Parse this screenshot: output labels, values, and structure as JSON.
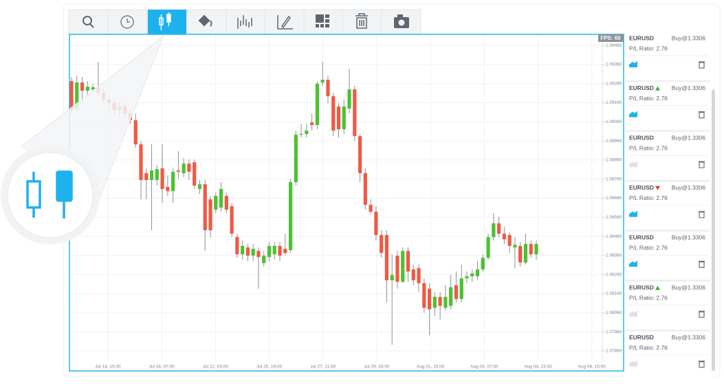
{
  "chart": {
    "fps_label": "FPS: 60",
    "up_color": "#4cc230",
    "down_color": "#ef5a44",
    "ylim": [
      1.07802,
      1.09518
    ],
    "yticks": [
      {
        "value": 1.0946,
        "label": "1.09460"
      },
      {
        "value": 1.0936,
        "label": "1.09360"
      },
      {
        "value": 1.0926,
        "label": "1.09260"
      },
      {
        "value": 1.0916,
        "label": "1.09160"
      },
      {
        "value": 1.0906,
        "label": "1.09060"
      },
      {
        "value": 1.0896,
        "label": "1.08960"
      },
      {
        "value": 1.0886,
        "label": "1.08860"
      },
      {
        "value": 1.0876,
        "label": "1.08760"
      },
      {
        "value": 1.0866,
        "label": "1.08660"
      },
      {
        "value": 1.0856,
        "label": "1.08560"
      },
      {
        "value": 1.0846,
        "label": "1.08460"
      },
      {
        "value": 1.0836,
        "label": "1.08360"
      },
      {
        "value": 1.0826,
        "label": "1.08260"
      },
      {
        "value": 1.0816,
        "label": "1.08160"
      },
      {
        "value": 1.0806,
        "label": "1.08060"
      },
      {
        "value": 1.0796,
        "label": "1.07960"
      },
      {
        "value": 1.0786,
        "label": "1.07860"
      }
    ],
    "xlabels": [
      "Jul 14, 15:00",
      "Jul 18, 07:00",
      "Jul 22, 03:00",
      "Jul 25, 19:00",
      "Jul 27, 11:00",
      "Jul 29, 03:00",
      "Aug 01, 15:00",
      "Aug 03, 07:00",
      "Aug 04, 23:00",
      "Aug 08, 15:00"
    ],
    "candles": [
      [
        1.09273,
        1.09295,
        1.09104,
        1.09122
      ],
      [
        1.09129,
        1.09302,
        1.09115,
        1.09266
      ],
      [
        1.09266,
        1.09295,
        1.09158,
        1.09223
      ],
      [
        1.09223,
        1.09273,
        1.09194,
        1.09244
      ],
      [
        1.0923,
        1.09259,
        1.09212,
        1.09241
      ],
      [
        1.09241,
        1.09374,
        1.09194,
        1.09212
      ],
      [
        1.09212,
        1.0923,
        1.09158,
        1.09176
      ],
      [
        1.09176,
        1.09194,
        1.09129,
        1.09158
      ],
      [
        1.09158,
        1.09176,
        1.09104,
        1.09122
      ],
      [
        1.09122,
        1.09158,
        1.09093,
        1.0914
      ],
      [
        1.0914,
        1.09158,
        1.09086,
        1.09104
      ],
      [
        1.09104,
        1.09122,
        1.0905,
        1.09068
      ],
      [
        1.09068,
        1.09104,
        1.08924,
        1.08942
      ],
      [
        1.08942,
        1.0896,
        1.08654,
        1.08755
      ],
      [
        1.08791,
        1.08816,
        1.08654,
        1.08755
      ],
      [
        1.08755,
        1.08942,
        1.08492,
        1.08805
      ],
      [
        1.08755,
        1.08834,
        1.08726,
        1.08812
      ],
      [
        1.08816,
        1.08942,
        1.08636,
        1.08708
      ],
      [
        1.08719,
        1.0878,
        1.08672,
        1.08697
      ],
      [
        1.08697,
        1.08816,
        1.08636,
        1.08798
      ],
      [
        1.08805,
        1.08906,
        1.08762,
        1.08798
      ],
      [
        1.08791,
        1.0887,
        1.0877,
        1.08841
      ],
      [
        1.08841,
        1.08863,
        1.08755,
        1.08798
      ],
      [
        1.08848,
        1.08863,
        1.08708,
        1.08726
      ],
      [
        1.08708,
        1.08755,
        1.08683,
        1.08733
      ],
      [
        1.08733,
        1.08755,
        1.08384,
        1.08492
      ],
      [
        1.08654,
        1.08672,
        1.08456,
        1.08492
      ],
      [
        1.086,
        1.0869,
        1.08582,
        1.08672
      ],
      [
        1.08611,
        1.08744,
        1.0859,
        1.08708
      ],
      [
        1.08672,
        1.0869,
        1.08582,
        1.086
      ],
      [
        1.08618,
        1.08636,
        1.08456,
        1.08474
      ],
      [
        1.08456,
        1.08474,
        1.08348,
        1.08366
      ],
      [
        1.08366,
        1.08438,
        1.08338,
        1.0841
      ],
      [
        1.08402,
        1.0842,
        1.0833,
        1.08359
      ],
      [
        1.08359,
        1.0842,
        1.0833,
        1.08395
      ],
      [
        1.08384,
        1.08402,
        1.08186,
        1.08352
      ],
      [
        1.0832,
        1.08384,
        1.08302,
        1.08359
      ],
      [
        1.08352,
        1.08431,
        1.0833,
        1.0841
      ],
      [
        1.08366,
        1.08431,
        1.08338,
        1.0841
      ],
      [
        1.0841,
        1.08431,
        1.0833,
        1.08359
      ],
      [
        1.08395,
        1.08474,
        1.08359,
        1.08373
      ],
      [
        1.08388,
        1.08762,
        1.08373,
        1.08744
      ],
      [
        1.08744,
        1.09014,
        1.08726,
        1.08992
      ],
      [
        1.08992,
        1.0905,
        1.08978,
        1.08996
      ],
      [
        1.08996,
        1.0905,
        1.08978,
        1.09014
      ],
      [
        1.09057,
        1.09104,
        1.09014,
        1.09043
      ],
      [
        1.09043,
        1.09273,
        1.09021,
        1.09259
      ],
      [
        1.09266,
        1.09374,
        1.09248,
        1.0928
      ],
      [
        1.0928,
        1.09302,
        1.09158,
        1.09194
      ],
      [
        1.09194,
        1.09212,
        1.08985,
        1.09014
      ],
      [
        1.0914,
        1.09158,
        1.08978,
        1.09021
      ],
      [
        1.09021,
        1.09176,
        1.08996,
        1.0914
      ],
      [
        1.09129,
        1.09338,
        1.09104,
        1.0923
      ],
      [
        1.0923,
        1.09248,
        1.0896,
        1.08985
      ],
      [
        1.08985,
        1.08996,
        1.08744,
        1.08791
      ],
      [
        1.08791,
        1.08816,
        1.086,
        1.08625
      ],
      [
        1.08625,
        1.08654,
        1.08575,
        1.08589
      ],
      [
        1.08589,
        1.08618,
        1.08438,
        1.08467
      ],
      [
        1.08467,
        1.08492,
        1.08348,
        1.08373
      ],
      [
        1.08467,
        1.08492,
        1.08114,
        1.0823
      ],
      [
        1.0823,
        1.08366,
        1.07892,
        1.08258
      ],
      [
        1.08359,
        1.08384,
        1.08186,
        1.08222
      ],
      [
        1.08222,
        1.08402,
        1.08215,
        1.08384
      ],
      [
        1.08384,
        1.08402,
        1.08222,
        1.08276
      ],
      [
        1.08287,
        1.08312,
        1.08204,
        1.0823
      ],
      [
        1.08294,
        1.08312,
        1.08168,
        1.08215
      ],
      [
        1.08215,
        1.0824,
        1.0806,
        1.08086
      ],
      [
        1.08186,
        1.08215,
        1.07942,
        1.08078
      ],
      [
        1.08086,
        1.08168,
        1.08042,
        1.08143
      ],
      [
        1.08143,
        1.08168,
        1.08024,
        1.08096
      ],
      [
        1.08086,
        1.08204,
        1.08071,
        1.08143
      ],
      [
        1.08096,
        1.08258,
        1.08078,
        1.08193
      ],
      [
        1.08204,
        1.08276,
        1.08114,
        1.08132
      ],
      [
        1.08132,
        1.08312,
        1.08114,
        1.0824
      ],
      [
        1.0824,
        1.08276,
        1.08215,
        1.08251
      ],
      [
        1.08251,
        1.08287,
        1.08222,
        1.08266
      ],
      [
        1.08251,
        1.0833,
        1.0823,
        1.08287
      ],
      [
        1.08287,
        1.08366,
        1.08276,
        1.08348
      ],
      [
        1.08348,
        1.08474,
        1.08338,
        1.08456
      ],
      [
        1.08456,
        1.08582,
        1.08438,
        1.08528
      ],
      [
        1.08528,
        1.08564,
        1.08456,
        1.08474
      ],
      [
        1.08474,
        1.0851,
        1.0842,
        1.08445
      ],
      [
        1.08467,
        1.08481,
        1.08373,
        1.0841
      ],
      [
        1.08402,
        1.08456,
        1.08294,
        1.08416
      ],
      [
        1.0841,
        1.08431,
        1.08302,
        1.08323
      ],
      [
        1.08323,
        1.08474,
        1.08312,
        1.0842
      ],
      [
        1.0842,
        1.08438,
        1.08348,
        1.08366
      ],
      [
        1.08366,
        1.08438,
        1.08338,
        1.0842
      ]
    ]
  },
  "orders": [
    {
      "symbol": "EURUSD",
      "trend": null,
      "order": "Buy@1.3306",
      "ratio": "P/L Ratio: 2.76",
      "active": true
    },
    {
      "symbol": "EURUSD",
      "trend": "up",
      "order": "Buy@1.3306",
      "ratio": "P/L Ratio: 2.76",
      "active": true
    },
    {
      "symbol": "EURUSD",
      "trend": null,
      "order": "Buy@1.3306",
      "ratio": "P/L Ratio: 2.76",
      "active": false
    },
    {
      "symbol": "EURUSD",
      "trend": "down",
      "order": "Buy@1.3306",
      "ratio": "P/L Ratio: 2.76",
      "active": true
    },
    {
      "symbol": "EURUSD",
      "trend": null,
      "order": "Buy@1.3306",
      "ratio": "P/L Ratio: 2.76",
      "active": true
    },
    {
      "symbol": "EURUSD",
      "trend": "up",
      "order": "Buy@1.3306",
      "ratio": "P/L Ratio: 2.76",
      "active": false
    },
    {
      "symbol": "EURUSD",
      "trend": null,
      "order": "Buy@1.3306",
      "ratio": "P/L Ratio: 2.76",
      "active": false
    }
  ]
}
